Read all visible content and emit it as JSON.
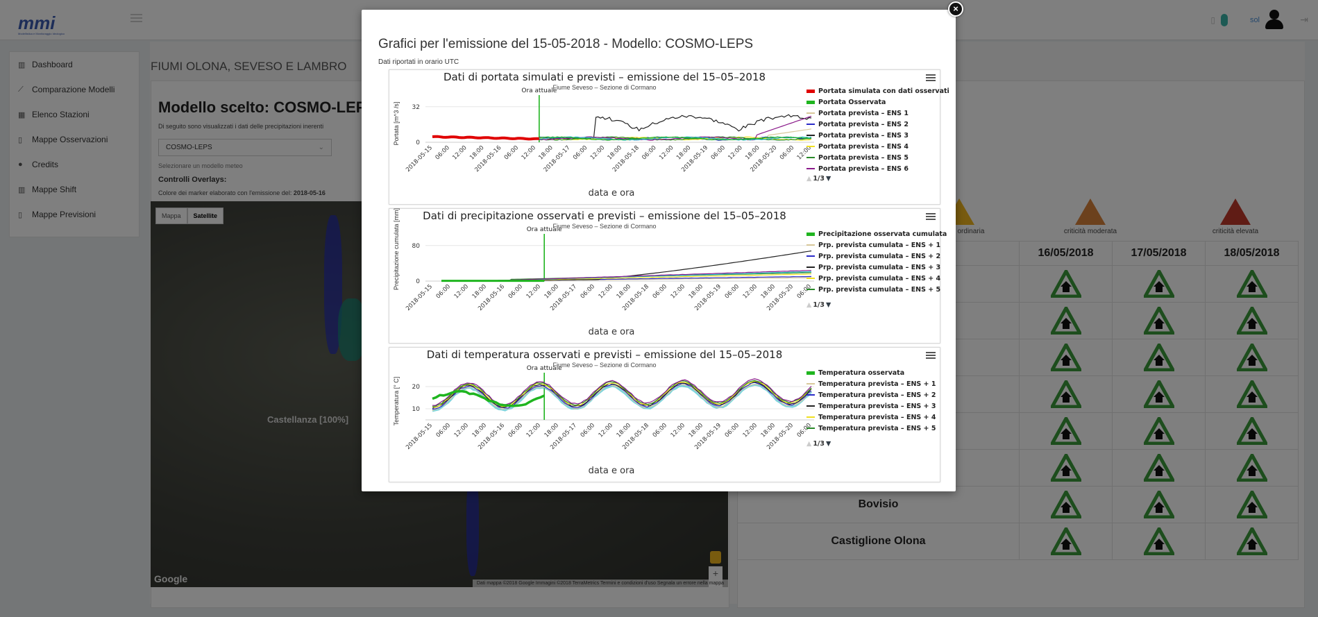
{
  "topbar": {
    "logo_text": "Modellistica e Monitoraggio Idrologico",
    "user": "sol"
  },
  "sidebar": {
    "items": [
      {
        "label": "Dashboard",
        "icon": "map-icon"
      },
      {
        "label": "Comparazione Modelli",
        "icon": "chart-line-icon"
      },
      {
        "label": "Elenco Stazioni",
        "icon": "table-icon"
      },
      {
        "label": "Mappe Osservazioni",
        "icon": "map-icon"
      },
      {
        "label": "Credits",
        "icon": "info-icon"
      },
      {
        "label": "Mappe Shift",
        "icon": "map-icon"
      },
      {
        "label": "Mappe Previsioni",
        "icon": "map-icon"
      }
    ]
  },
  "main": {
    "title": "FIUMI OLONA, SEVESO E LAMBRO",
    "model_title": "Modello scelto: COSMO-LEP",
    "sub_line": "Di seguito sono visualizzati i dati delle precipitazioni inerenti",
    "select_value": "COSMO-LEPS",
    "select_help": "Selezionare un modello meteo",
    "controls_label": "Controlli Overlays:",
    "marker_line": "Colore dei marker elaborato con l'emissione del:",
    "marker_date": "2018-05-16",
    "map": {
      "btn_map": "Mappa",
      "btn_satellite": "Satellite",
      "place_label": "Castellanza [100%]",
      "google": "Google",
      "footer": "Dati mappa ©2018 Google Immagini ©2018 TerraMetrics   Termini e condizioni d'uso   Segnala un errore nella mappa"
    },
    "risk": [
      {
        "label": "criticità ordinaria",
        "color": "#f1b61e"
      },
      {
        "label": "criticità moderata",
        "color": "#d9823b"
      },
      {
        "label": "criticità elevata",
        "color": "#c0392b"
      }
    ],
    "table": {
      "days": [
        "16/05/2018",
        "17/05/2018",
        "18/05/2018"
      ],
      "rows": [
        "",
        "",
        "",
        "",
        "",
        "",
        "Bovisio",
        "Castiglione Olona"
      ]
    }
  },
  "modal": {
    "title": "Grafici per l'emissione del 15-05-2018 - Modello: COSMO-LEPS",
    "subtitle": "Dati riportati in orario UTC",
    "close": "×"
  },
  "chart_data": [
    {
      "type": "line",
      "title": "Dati di portata simulati e previsti – emissione del 15–05–2018",
      "subtitle": "Fiume Seveso – Sezione di Cormano",
      "xlabel": "data e ora",
      "ylabel": "Portata [m^3 /s]",
      "yticks": [
        0,
        32
      ],
      "ylim": [
        0,
        40
      ],
      "annotation": "Ora attuale",
      "xticks": [
        "2018-05-15",
        "06:00",
        "12:00",
        "18:00",
        "2018-05-16",
        "06:00",
        "12:00",
        "18:00",
        "2018-05-17",
        "06:00",
        "12:00",
        "18:00",
        "2018-05-18",
        "06:00",
        "12:00",
        "18:00",
        "2018-05-19",
        "06:00",
        "12:00",
        "18:00",
        "2018-05-20",
        "06:00",
        "12:00"
      ],
      "legend": [
        {
          "name": "Portata simulata con dati osservati",
          "color": "#e00000",
          "thick": true
        },
        {
          "name": "Portata Osservata",
          "color": "#1fb51f",
          "thick": true
        },
        {
          "name": "Portata prevista – ENS 1",
          "color": "#d8c89a"
        },
        {
          "name": "Portata prevista – ENS 2",
          "color": "#2a2ac8"
        },
        {
          "name": "Portata prevista – ENS 3",
          "color": "#222222"
        },
        {
          "name": "Portata prevista – ENS 4",
          "color": "#f0e020"
        },
        {
          "name": "Portata prevista – ENS 5",
          "color": "#2a8a2a"
        },
        {
          "name": "Portata prevista – ENS 6",
          "color": "#8a1a8a"
        }
      ],
      "page": "1/3"
    },
    {
      "type": "line",
      "title": "Dati di precipitazione osservati e previsti – emissione del 15–05–2018",
      "subtitle": "Fiume Seveso – Sezione di Cormano",
      "xlabel": "data e ora",
      "ylabel": "Precipitazione cumulata [mm]",
      "yticks": [
        0,
        80
      ],
      "ylim": [
        0,
        100
      ],
      "annotation": "Ora attuale",
      "xticks": [
        "2018-05-15",
        "06:00",
        "12:00",
        "18:00",
        "2018-05-16",
        "06:00",
        "12:00",
        "18:00",
        "2018-05-17",
        "06:00",
        "12:00",
        "18:00",
        "2018-05-18",
        "06:00",
        "12:00",
        "18:00",
        "2018-05-19",
        "06:00",
        "12:00",
        "18:00",
        "2018-05-20",
        "06:00"
      ],
      "legend": [
        {
          "name": "Precipitazione osservata cumulata",
          "color": "#1fb51f",
          "thick": true
        },
        {
          "name": "Prp. prevista cumulata – ENS + 1",
          "color": "#d8c89a"
        },
        {
          "name": "Prp. prevista cumulata – ENS + 2",
          "color": "#2a2ac8"
        },
        {
          "name": "Prp. prevista cumulata – ENS + 3",
          "color": "#222222"
        },
        {
          "name": "Prp. prevista cumulata – ENS + 4",
          "color": "#f0e020"
        },
        {
          "name": "Prp. prevista cumulata – ENS + 5",
          "color": "#2a8a2a"
        }
      ],
      "page": "1/3"
    },
    {
      "type": "line",
      "title": "Dati di temperatura osservati e previsti – emissione del 15–05–2018",
      "subtitle": "Fiume Seveso – Sezione di Cormano",
      "xlabel": "data e ora",
      "ylabel": "Temperatura [° C]",
      "yticks": [
        10,
        20
      ],
      "ylim": [
        5,
        25
      ],
      "annotation": "Ora attuale",
      "xticks": [
        "2018-05-15",
        "06:00",
        "12:00",
        "18:00",
        "2018-05-16",
        "06:00",
        "12:00",
        "18:00",
        "2018-05-17",
        "06:00",
        "12:00",
        "18:00",
        "2018-05-18",
        "06:00",
        "12:00",
        "18:00",
        "2018-05-19",
        "06:00",
        "12:00",
        "18:00",
        "2018-05-20",
        "06:00"
      ],
      "legend": [
        {
          "name": "Temperatura osservata",
          "color": "#1fb51f",
          "thick": true
        },
        {
          "name": "Temperatura prevista – ENS + 1",
          "color": "#d8c89a"
        },
        {
          "name": "Temperatura prevista – ENS + 2",
          "color": "#2a2ac8"
        },
        {
          "name": "Temperatura prevista – ENS + 3",
          "color": "#222222"
        },
        {
          "name": "Temperatura prevista – ENS + 4",
          "color": "#f0e020"
        },
        {
          "name": "Temperatura prevista – ENS + 5",
          "color": "#2a8a2a"
        }
      ],
      "page": "1/3"
    }
  ]
}
